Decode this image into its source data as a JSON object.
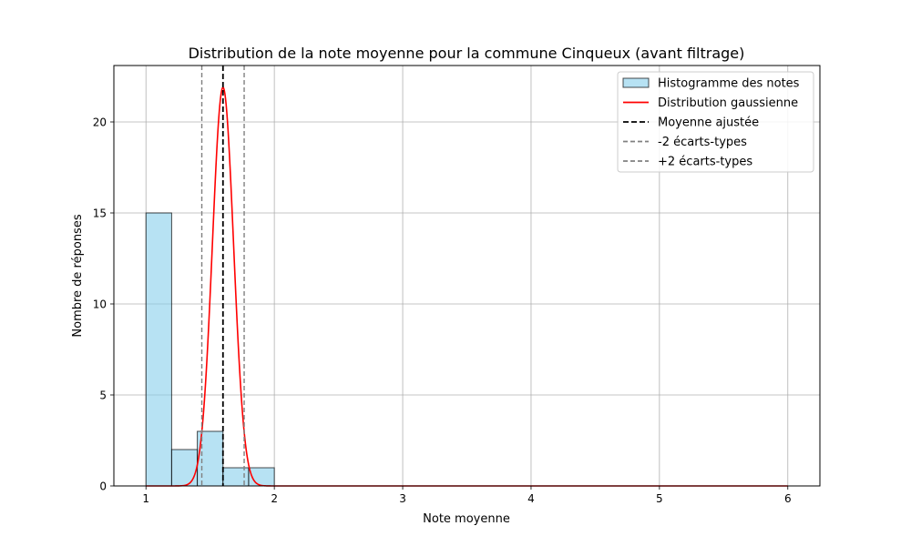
{
  "chart_data": {
    "type": "bar",
    "title": "Distribution de la note moyenne pour la commune Cinqueux (avant filtrage)",
    "xlabel": "Note moyenne",
    "ylabel": "Nombre de réponses",
    "xlim": [
      0.75,
      6.25
    ],
    "ylim": [
      0,
      23.1
    ],
    "x_ticks": [
      1,
      2,
      3,
      4,
      5,
      6
    ],
    "y_ticks": [
      0,
      5,
      10,
      15,
      20
    ],
    "grid": true,
    "legend_position": "top-right",
    "histogram": {
      "name": "Histogramme des notes",
      "bin_edges": [
        1.0,
        1.2,
        1.4,
        1.6,
        1.8,
        2.0
      ],
      "counts": [
        15,
        2,
        3,
        1,
        1
      ],
      "color": "#87ceeb"
    },
    "gaussian": {
      "name": "Distribution gaussienne",
      "mean": 1.6,
      "std": 0.0825,
      "peak": 21.9,
      "x_range": [
        1.0,
        6.0
      ],
      "color": "#ff0000"
    },
    "vlines": [
      {
        "name": "Moyenne ajustée",
        "x": 1.6,
        "color": "#000000"
      },
      {
        "name": "-2 écarts-types",
        "x": 1.435,
        "color": "#808080"
      },
      {
        "name": "+2 écarts-types",
        "x": 1.765,
        "color": "#808080"
      }
    ]
  }
}
